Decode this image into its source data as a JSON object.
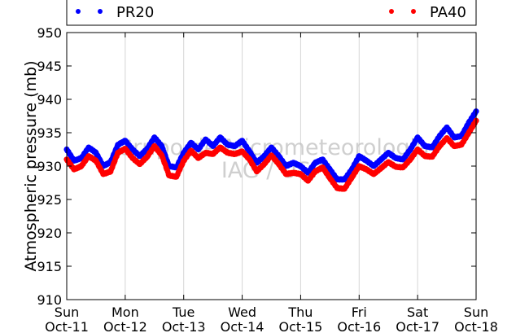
{
  "chart_data": {
    "type": "scatter",
    "ylabel": "Atmospheric pressure (mb)",
    "xlabel": "",
    "ylim": [
      910,
      950
    ],
    "xlim": [
      0,
      7
    ],
    "yticks": [
      910,
      915,
      920,
      925,
      930,
      935,
      940,
      945,
      950
    ],
    "xticks": [
      {
        "x": 0,
        "day": "Sun",
        "date": "Oct-11"
      },
      {
        "x": 1,
        "day": "Mon",
        "date": "Oct-12"
      },
      {
        "x": 2,
        "day": "Tue",
        "date": "Oct-13"
      },
      {
        "x": 3,
        "day": "Wed",
        "date": "Oct-14"
      },
      {
        "x": 4,
        "day": "Thu",
        "date": "Oct-15"
      },
      {
        "x": 5,
        "day": "Fri",
        "date": "Oct-16"
      },
      {
        "x": 6,
        "day": "Sat",
        "date": "Oct-17"
      },
      {
        "x": 7,
        "day": "Sun",
        "date": "Oct-18"
      }
    ],
    "grid": "vertical",
    "legend_position": "top",
    "watermark": [
      "Grupo de Micrometeorologia",
      "IAG / USP"
    ],
    "series": [
      {
        "name": "PR20",
        "color": "#0000ff",
        "x": [
          0.0,
          0.125,
          0.25,
          0.375,
          0.5,
          0.625,
          0.75,
          0.875,
          1.0,
          1.125,
          1.25,
          1.375,
          1.5,
          1.625,
          1.75,
          1.875,
          2.0,
          2.125,
          2.25,
          2.375,
          2.5,
          2.625,
          2.75,
          2.875,
          3.0,
          3.125,
          3.25,
          3.375,
          3.5,
          3.625,
          3.75,
          3.875,
          4.0,
          4.125,
          4.25,
          4.375,
          4.5,
          4.625,
          4.75,
          4.875,
          5.0,
          5.125,
          5.25,
          5.375,
          5.5,
          5.625,
          5.75,
          5.875,
          6.0,
          6.125,
          6.25,
          6.375,
          6.5,
          6.625,
          6.75,
          6.875,
          7.0
        ],
        "y": [
          932.5,
          930.8,
          931.2,
          932.8,
          932.0,
          930.0,
          930.6,
          933.2,
          933.8,
          932.5,
          931.5,
          932.6,
          934.3,
          933.0,
          930.0,
          929.8,
          932.0,
          933.5,
          932.5,
          934.0,
          933.0,
          934.3,
          933.2,
          933.0,
          933.8,
          932.2,
          930.5,
          931.5,
          932.8,
          931.5,
          930.0,
          930.5,
          930.0,
          929.0,
          930.5,
          931.0,
          929.5,
          928.0,
          928.0,
          929.5,
          931.5,
          930.8,
          930.0,
          931.0,
          932.0,
          931.2,
          931.0,
          932.5,
          934.3,
          933.0,
          932.8,
          934.5,
          935.8,
          934.3,
          934.5,
          936.5,
          938.2
        ]
      },
      {
        "name": "PA40",
        "color": "#ff0000",
        "x": [
          0.0,
          0.125,
          0.25,
          0.375,
          0.5,
          0.625,
          0.75,
          0.875,
          1.0,
          1.125,
          1.25,
          1.375,
          1.5,
          1.625,
          1.75,
          1.875,
          2.0,
          2.125,
          2.25,
          2.375,
          2.5,
          2.625,
          2.75,
          2.875,
          3.0,
          3.125,
          3.25,
          3.375,
          3.5,
          3.625,
          3.75,
          3.875,
          4.0,
          4.125,
          4.25,
          4.375,
          4.5,
          4.625,
          4.75,
          4.875,
          5.0,
          5.125,
          5.25,
          5.375,
          5.5,
          5.625,
          5.75,
          5.875,
          6.0,
          6.125,
          6.25,
          6.375,
          6.5,
          6.625,
          6.75,
          6.875,
          7.0
        ],
        "y": [
          931.0,
          929.5,
          930.0,
          931.5,
          930.8,
          928.8,
          929.2,
          932.0,
          932.6,
          931.2,
          930.3,
          931.4,
          933.0,
          931.6,
          928.6,
          928.4,
          930.8,
          932.3,
          931.2,
          932.0,
          931.8,
          932.8,
          932.0,
          931.8,
          932.2,
          931.0,
          929.2,
          930.3,
          931.6,
          930.3,
          928.8,
          929.0,
          928.8,
          927.8,
          929.2,
          929.8,
          928.2,
          926.7,
          926.6,
          928.3,
          930.0,
          929.5,
          928.8,
          929.7,
          930.6,
          929.9,
          929.8,
          931.0,
          932.5,
          931.5,
          931.4,
          933.0,
          934.2,
          933.0,
          933.2,
          935.0,
          936.8
        ]
      }
    ]
  }
}
